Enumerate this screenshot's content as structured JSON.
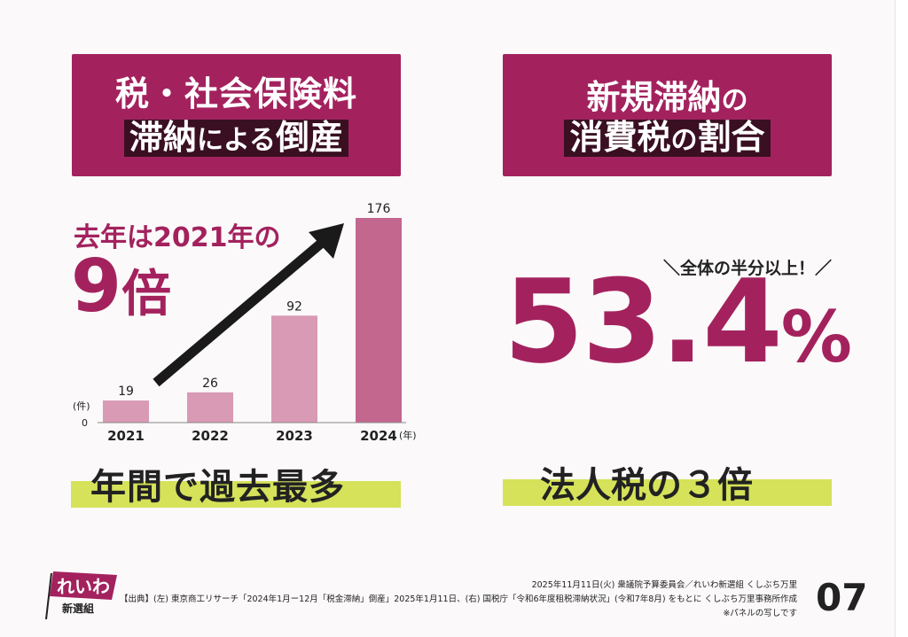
{
  "left_panel": {
    "title_line1": "税・社会保険料",
    "title_line2_a": "滞納",
    "title_line2_b": "による",
    "title_line2_c": "倒産",
    "headline_small": "去年は2021年の",
    "headline_number": "9",
    "headline_unit": "倍",
    "bottom_label": "年間で過去最多"
  },
  "right_panel": {
    "title_line1_a": "新規滞納",
    "title_line1_b": "の",
    "title_line2_a": "消費税",
    "title_line2_b": "の",
    "title_line2_c": "割合",
    "callout": "＼全体の半分以上！／",
    "big_value": "53.4",
    "big_unit": "%",
    "bottom_label": "法人税の３倍"
  },
  "chart_data": {
    "type": "bar",
    "categories": [
      "2021",
      "2022",
      "2023",
      "2024"
    ],
    "values": [
      19,
      26,
      92,
      176
    ],
    "value_labels": [
      "19",
      "26",
      "92",
      "176"
    ],
    "ylabel": "(件)",
    "xunit": "(年)",
    "y_zero_label": "0",
    "ylim": [
      0,
      176
    ],
    "colors": [
      "#d99ab5",
      "#d99ab5",
      "#d99ab5",
      "#c4678f"
    ],
    "arrow": "up-right trend arrow"
  },
  "footer": {
    "date_line": "2025年11月11日(火) 衆議院予算委員会／れいわ新選組 くしぶち万里",
    "source_line": "【出典】(左) 東京商工リサーチ「2024年1月ー12月「税金滞納」倒産」2025年1月11日、(右) 国税庁「令和6年度租税滞納状況」(令和7年8月) をもとに くしぶち万里事務所作成",
    "note_line": "※パネルの写しです",
    "page_number": "07"
  },
  "logo": {
    "text": "れいわ",
    "sub": "新選組"
  },
  "colors": {
    "brand_magenta": "#a3225e",
    "dark_band": "#3a0f22",
    "highlight_yellow": "#d5e25a"
  }
}
